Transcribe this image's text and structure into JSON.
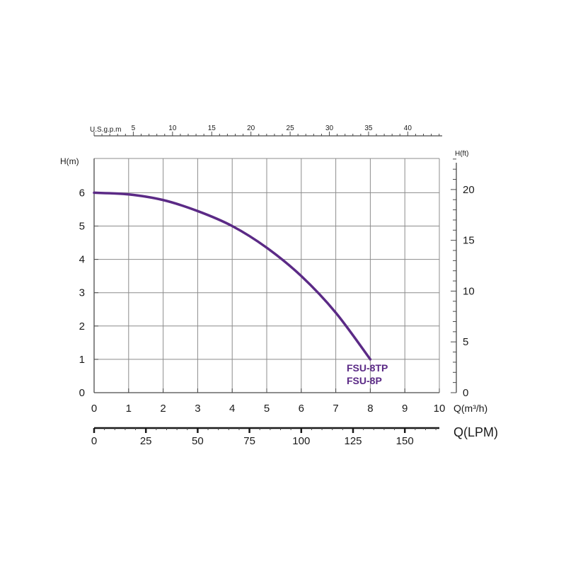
{
  "chart_data": {
    "type": "line",
    "x_axis": {
      "label": "Q(m³/h)",
      "range": [
        0,
        10
      ],
      "ticks": [
        "0",
        "1",
        "2",
        "3",
        "4",
        "5",
        "6",
        "7",
        "8",
        "9",
        "10"
      ]
    },
    "y_axis": {
      "label": "H(m)",
      "range": [
        0,
        7
      ],
      "ticks": [
        "0",
        "1",
        "2",
        "3",
        "4",
        "5",
        "6"
      ]
    },
    "secondary_y_axis": {
      "label": "H(ft)",
      "range": [
        0,
        23
      ],
      "ticks": [
        "0",
        "5",
        "10",
        "15",
        "20"
      ]
    },
    "secondary_x_axis_top": {
      "label": "U.S.g.p.m",
      "range": [
        0,
        44
      ],
      "ticks": [
        "5",
        "10",
        "15",
        "20",
        "25",
        "30",
        "35",
        "40"
      ]
    },
    "secondary_x_axis_bottom": {
      "label": "Q(LPM)",
      "range": [
        0,
        166.7
      ],
      "ticks": [
        "0",
        "25",
        "50",
        "75",
        "100",
        "125",
        "150"
      ]
    },
    "grid": true,
    "series": [
      {
        "name": "FSU-8TP\nFSU-8P",
        "name_lines": [
          "FSU-8TP",
          "FSU-8P"
        ],
        "color": "#5b2a86",
        "x": [
          0,
          1,
          2,
          3,
          4,
          5,
          6,
          7,
          8
        ],
        "y": [
          6.0,
          5.95,
          5.78,
          5.45,
          5.0,
          4.35,
          3.5,
          2.4,
          1.0
        ]
      }
    ]
  }
}
